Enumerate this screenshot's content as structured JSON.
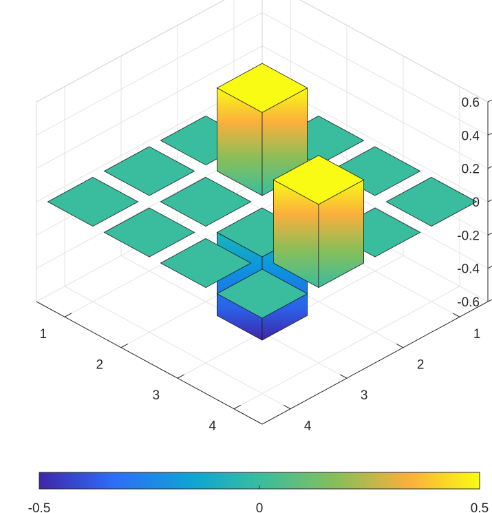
{
  "chart_data": {
    "type": "bar3",
    "title": "",
    "xlabel": "",
    "ylabel": "",
    "zlabel": "",
    "x_categories": [
      "1",
      "2",
      "3",
      "4"
    ],
    "y_categories": [
      "1",
      "2",
      "3",
      "4"
    ],
    "zlim": [
      -0.6,
      0.6
    ],
    "z_ticks": [
      "-0.6",
      "-0.4",
      "-0.2",
      "0",
      "0.2",
      "0.4",
      "0.6"
    ],
    "grid": true,
    "values": [
      [
        0,
        0,
        0,
        0
      ],
      [
        0,
        0.5,
        0,
        0
      ],
      [
        0,
        0,
        -0.5,
        0.5
      ],
      [
        0,
        0,
        0,
        0
      ]
    ],
    "colorbar": {
      "location": "bottom",
      "ticks": [
        "-0.5",
        "0",
        "0.5"
      ],
      "colormap": [
        "#3e26a8",
        "#2e6ef7",
        "#0fa4d4",
        "#39bd9e",
        "#8abe58",
        "#fbaf3d",
        "#f9fb14"
      ]
    }
  }
}
